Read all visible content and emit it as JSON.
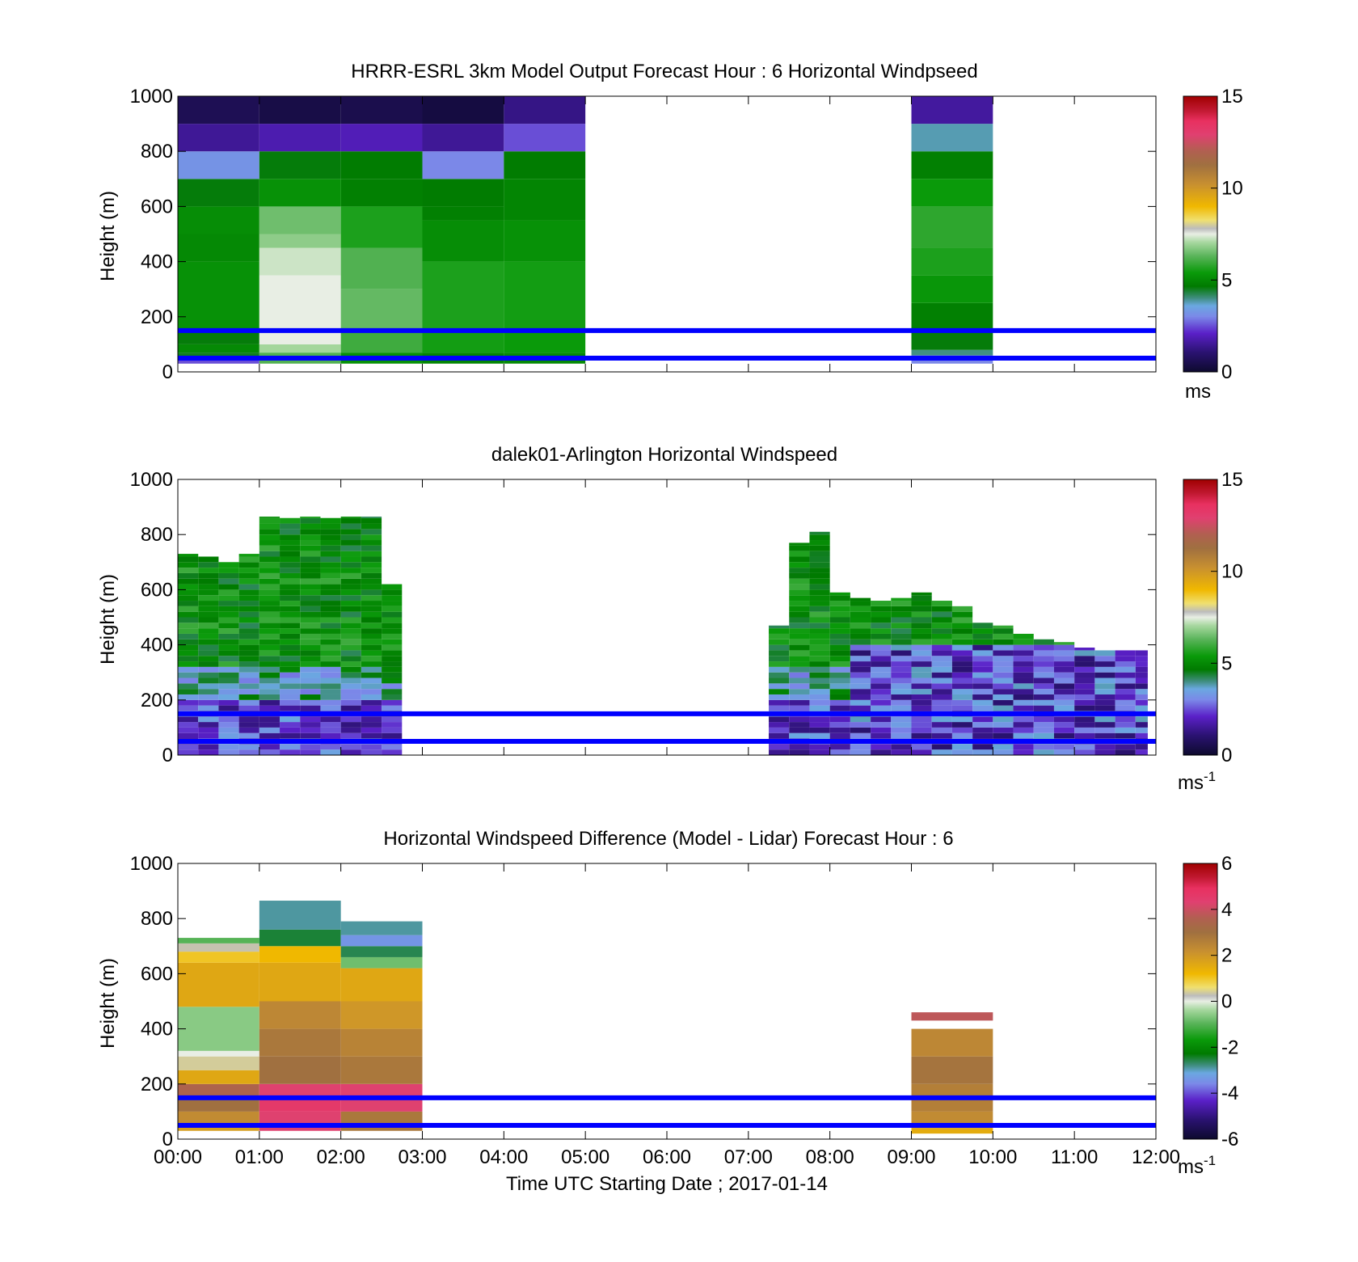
{
  "figure": {
    "xlabel": "Time UTC  Starting Date ; 2017-01-14",
    "x_ticks": [
      "00:00",
      "01:00",
      "02:00",
      "03:00",
      "04:00",
      "05:00",
      "06:00",
      "07:00",
      "08:00",
      "09:00",
      "10:00",
      "11:00",
      "12:00"
    ],
    "y_ticks": [
      "0",
      "200",
      "400",
      "600",
      "800",
      "1000"
    ],
    "ylabel": "Height (m)",
    "reference_lines_m": [
      50,
      150
    ],
    "reference_line_color": "#0000ff"
  },
  "chart_data": [
    {
      "type": "heatmap",
      "title": "HRRR-ESRL 3km Model Output   Forecast Hour : 6 Horizontal Windpseed",
      "ylabel": "Height (m)",
      "xlim_hours": [
        0,
        12
      ],
      "ylim": [
        0,
        1000
      ],
      "colorbar": {
        "ticks": [
          "0",
          "5",
          "10",
          "15"
        ],
        "range": [
          0,
          15
        ],
        "unit": "ms",
        "unit_sup": ""
      },
      "cells": [
        {
          "t0": 0,
          "t1": 1,
          "levels": [
            [
              30,
              50,
              2.5
            ],
            [
              50,
              70,
              4.5
            ],
            [
              70,
              100,
              5
            ],
            [
              100,
              150,
              4.6
            ],
            [
              150,
              400,
              5.2
            ],
            [
              400,
              500,
              5.0
            ],
            [
              500,
              600,
              5.1
            ],
            [
              600,
              700,
              4.6
            ],
            [
              700,
              800,
              3.2
            ],
            [
              800,
              900,
              1.5
            ],
            [
              900,
              1000,
              0.6
            ]
          ]
        },
        {
          "t0": 1,
          "t1": 2,
          "levels": [
            [
              30,
              70,
              6.2
            ],
            [
              70,
              100,
              7.0
            ],
            [
              100,
              350,
              7.5
            ],
            [
              350,
              450,
              7.3
            ],
            [
              450,
              500,
              6.8
            ],
            [
              500,
              600,
              6.5
            ],
            [
              600,
              700,
              5.2
            ],
            [
              700,
              800,
              4.6
            ],
            [
              800,
              900,
              1.8
            ],
            [
              900,
              1000,
              0.4
            ]
          ]
        },
        {
          "t0": 2,
          "t1": 3,
          "levels": [
            [
              30,
              70,
              5.2
            ],
            [
              70,
              150,
              6.0
            ],
            [
              150,
              300,
              6.4
            ],
            [
              300,
              450,
              6.2
            ],
            [
              450,
              600,
              5.6
            ],
            [
              600,
              700,
              4.8
            ],
            [
              700,
              800,
              4.7
            ],
            [
              800,
              900,
              1.9
            ],
            [
              900,
              1000,
              0.5
            ]
          ]
        },
        {
          "t0": 3,
          "t1": 4,
          "levels": [
            [
              30,
              70,
              4.9
            ],
            [
              70,
              150,
              5.5
            ],
            [
              150,
              400,
              5.6
            ],
            [
              400,
              550,
              5.1
            ],
            [
              550,
              600,
              4.8
            ],
            [
              600,
              700,
              4.7
            ],
            [
              700,
              800,
              3.0
            ],
            [
              800,
              900,
              1.5
            ],
            [
              900,
              1000,
              0.3
            ]
          ]
        },
        {
          "t0": 4,
          "t1": 5,
          "levels": [
            [
              30,
              70,
              5.0
            ],
            [
              70,
              150,
              5.4
            ],
            [
              150,
              400,
              5.5
            ],
            [
              400,
              550,
              5.2
            ],
            [
              550,
              700,
              4.9
            ],
            [
              700,
              800,
              4.7
            ],
            [
              800,
              900,
              2.5
            ],
            [
              900,
              1000,
              1.3
            ]
          ]
        },
        {
          "t0": 9,
          "t1": 10,
          "levels": [
            [
              30,
              60,
              3.0
            ],
            [
              60,
              80,
              4.0
            ],
            [
              80,
              150,
              4.6
            ],
            [
              150,
              250,
              4.8
            ],
            [
              250,
              350,
              5.3
            ],
            [
              350,
              450,
              5.6
            ],
            [
              450,
              600,
              5.8
            ],
            [
              600,
              700,
              5.4
            ],
            [
              700,
              800,
              4.8
            ],
            [
              800,
              900,
              3.8
            ],
            [
              900,
              1000,
              1.6
            ]
          ]
        }
      ]
    },
    {
      "type": "heatmap",
      "title": "dalek01-Arlington  Horizontal Windspeed",
      "ylabel": "Height (m)",
      "xlim_hours": [
        0,
        12
      ],
      "ylim": [
        0,
        1000
      ],
      "colorbar": {
        "ticks": [
          "0",
          "5",
          "10",
          "15"
        ],
        "range": [
          0,
          15
        ],
        "unit": "ms",
        "unit_sup": "-1"
      },
      "columns": [
        {
          "t0": 0.0,
          "t1": 0.25,
          "top": 730
        },
        {
          "t0": 0.25,
          "t1": 0.5,
          "top": 720
        },
        {
          "t0": 0.5,
          "t1": 0.75,
          "top": 700
        },
        {
          "t0": 0.75,
          "t1": 1.0,
          "top": 730
        },
        {
          "t0": 1.0,
          "t1": 1.25,
          "top": 865
        },
        {
          "t0": 1.25,
          "t1": 1.5,
          "top": 860
        },
        {
          "t0": 1.5,
          "t1": 1.75,
          "top": 865
        },
        {
          "t0": 1.75,
          "t1": 2.0,
          "top": 860
        },
        {
          "t0": 2.0,
          "t1": 2.25,
          "top": 865
        },
        {
          "t0": 2.25,
          "t1": 2.5,
          "top": 865
        },
        {
          "t0": 2.5,
          "t1": 2.75,
          "top": 620
        },
        {
          "t0": 7.25,
          "t1": 7.5,
          "top": 470
        },
        {
          "t0": 7.5,
          "t1": 7.75,
          "top": 770
        },
        {
          "t0": 7.75,
          "t1": 8.0,
          "top": 810
        },
        {
          "t0": 8.0,
          "t1": 8.25,
          "top": 590
        },
        {
          "t0": 8.25,
          "t1": 8.5,
          "top": 570
        },
        {
          "t0": 8.5,
          "t1": 8.75,
          "top": 560
        },
        {
          "t0": 8.75,
          "t1": 9.0,
          "top": 570
        },
        {
          "t0": 9.0,
          "t1": 9.25,
          "top": 590
        },
        {
          "t0": 9.25,
          "t1": 9.5,
          "top": 560
        },
        {
          "t0": 9.5,
          "t1": 9.75,
          "top": 540
        },
        {
          "t0": 9.75,
          "t1": 10.0,
          "top": 480
        },
        {
          "t0": 10.0,
          "t1": 10.25,
          "top": 470
        },
        {
          "t0": 10.25,
          "t1": 10.5,
          "top": 440
        },
        {
          "t0": 10.5,
          "t1": 10.75,
          "top": 420
        },
        {
          "t0": 10.75,
          "t1": 11.0,
          "top": 410
        },
        {
          "t0": 11.0,
          "t1": 11.25,
          "top": 390
        },
        {
          "t0": 11.25,
          "t1": 11.5,
          "top": 380
        },
        {
          "t0": 11.5,
          "t1": 11.75,
          "top": 380
        },
        {
          "t0": 11.75,
          "t1": 11.9,
          "top": 380
        }
      ]
    },
    {
      "type": "heatmap",
      "title": "Horizontal Windspeed Difference (Model - Lidar) Forecast Hour : 6",
      "ylabel": "Height (m)",
      "xlim_hours": [
        0,
        12
      ],
      "ylim": [
        0,
        1000
      ],
      "colorbar": {
        "ticks": [
          "-6",
          "-4",
          "-2",
          "0",
          "2",
          "4",
          "6"
        ],
        "range": [
          -6,
          6
        ],
        "unit": "ms",
        "unit_sup": "-1"
      },
      "cells": [
        {
          "t0": 0,
          "t1": 1,
          "levels": [
            [
              30,
              50,
              1.8
            ],
            [
              50,
              100,
              2.3
            ],
            [
              100,
              150,
              3.0
            ],
            [
              150,
              200,
              3.5
            ],
            [
              200,
              250,
              1.6
            ],
            [
              250,
              300,
              0.4
            ],
            [
              300,
              320,
              0.0
            ],
            [
              320,
              480,
              -0.6
            ],
            [
              480,
              640,
              1.6
            ],
            [
              640,
              680,
              1.0
            ],
            [
              680,
              710,
              0.3
            ],
            [
              710,
              730,
              -1.0
            ]
          ]
        },
        {
          "t0": 1,
          "t1": 2,
          "levels": [
            [
              30,
              100,
              4.3
            ],
            [
              100,
              150,
              4.6
            ],
            [
              150,
              200,
              4.3
            ],
            [
              200,
              300,
              3.0
            ],
            [
              300,
              400,
              2.8
            ],
            [
              400,
              500,
              2.4
            ],
            [
              500,
              640,
              1.6
            ],
            [
              640,
              700,
              1.2
            ],
            [
              700,
              760,
              -2.5
            ],
            [
              760,
              865,
              -2.9
            ]
          ]
        },
        {
          "t0": 2,
          "t1": 3,
          "levels": [
            [
              30,
              100,
              2.8
            ],
            [
              100,
              200,
              4.3
            ],
            [
              200,
              300,
              2.8
            ],
            [
              300,
              400,
              2.5
            ],
            [
              400,
              500,
              2.0
            ],
            [
              500,
              620,
              1.6
            ],
            [
              620,
              660,
              -0.8
            ],
            [
              660,
              700,
              -2.6
            ],
            [
              700,
              740,
              -3.4
            ],
            [
              740,
              790,
              -2.9
            ]
          ]
        },
        {
          "t0": 9,
          "t1": 10,
          "levels": [
            [
              20,
              40,
              1.5
            ],
            [
              40,
              100,
              2.3
            ],
            [
              100,
              200,
              2.6
            ],
            [
              200,
              300,
              2.9
            ],
            [
              300,
              400,
              2.4
            ],
            [
              430,
              460,
              3.8
            ]
          ]
        }
      ]
    }
  ]
}
